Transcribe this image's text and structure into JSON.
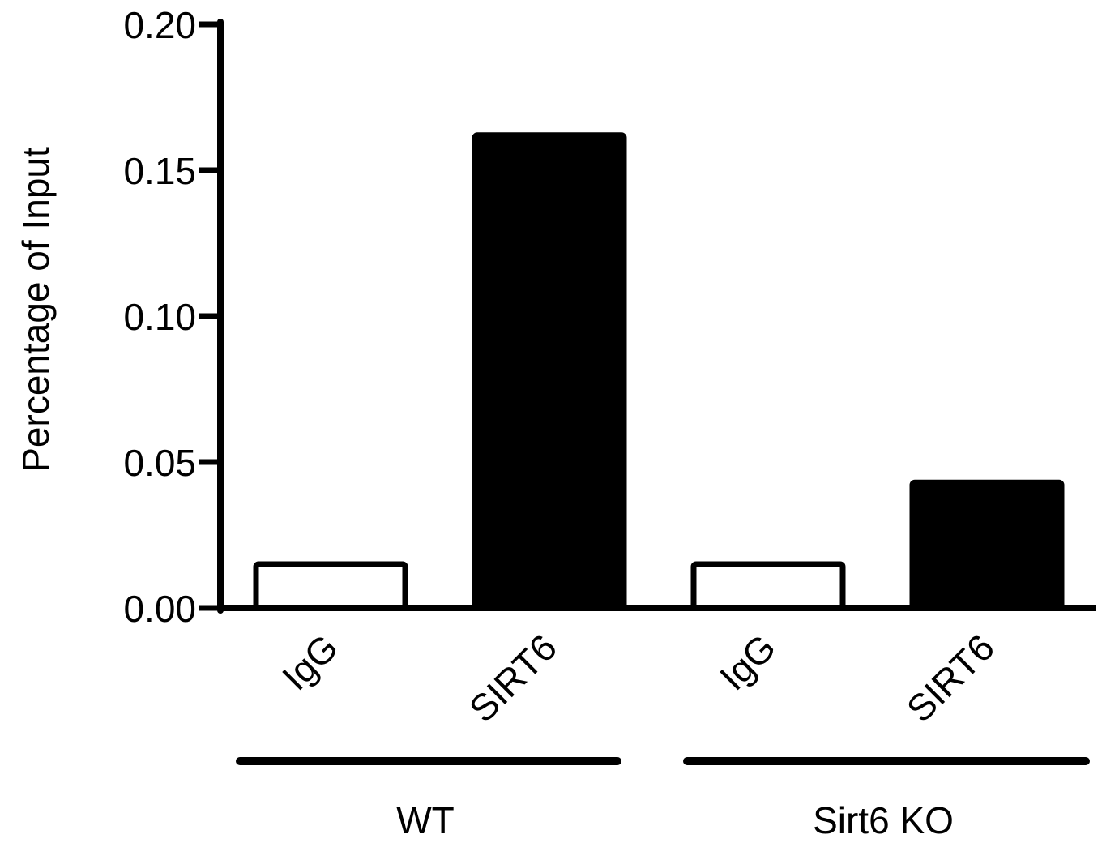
{
  "chart_data": {
    "type": "bar",
    "title": "",
    "xlabel": "",
    "ylabel": "Percentage of Input",
    "ylim": [
      0,
      0.2
    ],
    "yticks": [
      "0.00",
      "0.05",
      "0.10",
      "0.15",
      "0.20"
    ],
    "grid": false,
    "categories": [
      "IgG",
      "SIRT6",
      "IgG",
      "SIRT6"
    ],
    "values": [
      0.015,
      0.162,
      0.015,
      0.043
    ],
    "bar_fills": [
      "#ffffff",
      "#000000",
      "#ffffff",
      "#000000"
    ],
    "groups": [
      {
        "label": "WT",
        "members": [
          0,
          1
        ]
      },
      {
        "label": "Sirt6 KO",
        "members": [
          2,
          3
        ]
      }
    ]
  }
}
